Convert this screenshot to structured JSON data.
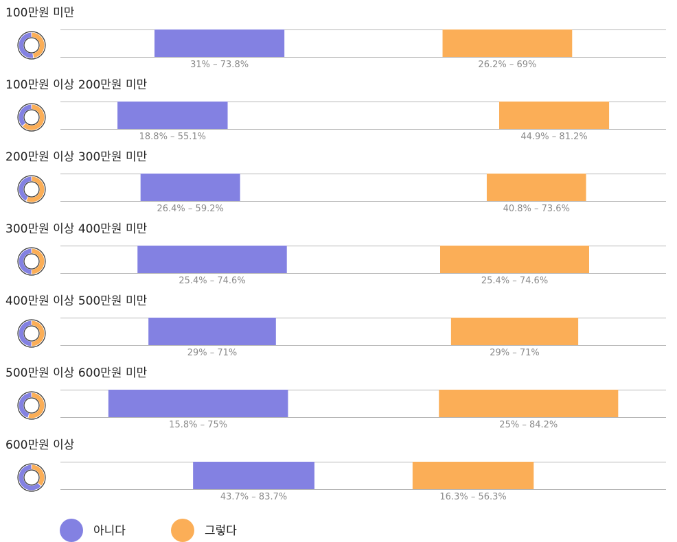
{
  "chart_data": {
    "type": "bar",
    "series": [
      {
        "name": "아니다",
        "color": "#8381e2"
      },
      {
        "name": "그렇다",
        "color": "#fbae57"
      }
    ],
    "rows": [
      {
        "category": "100만원 미만",
        "a": {
          "low": 31,
          "high": 73.8,
          "label": "31% – 73.8%"
        },
        "b": {
          "low": 26.2,
          "high": 69,
          "label": "26.2% – 69%"
        }
      },
      {
        "category": "100만원 이상 200만원 미만",
        "a": {
          "low": 18.8,
          "high": 55.1,
          "label": "18.8% – 55.1%"
        },
        "b": {
          "low": 44.9,
          "high": 81.2,
          "label": "44.9% – 81.2%"
        }
      },
      {
        "category": "200만원 이상 300만원 미만",
        "a": {
          "low": 26.4,
          "high": 59.2,
          "label": "26.4% – 59.2%"
        },
        "b": {
          "low": 40.8,
          "high": 73.6,
          "label": "40.8% – 73.6%"
        }
      },
      {
        "category": "300만원 이상 400만원 미만",
        "a": {
          "low": 25.4,
          "high": 74.6,
          "label": "25.4% – 74.6%"
        },
        "b": {
          "low": 25.4,
          "high": 74.6,
          "label": "25.4% – 74.6%"
        }
      },
      {
        "category": "400만원 이상 500만원 미만",
        "a": {
          "low": 29,
          "high": 71,
          "label": "29% – 71%"
        },
        "b": {
          "low": 29,
          "high": 71,
          "label": "29% – 71%"
        }
      },
      {
        "category": "500만원 이상 600만원 미만",
        "a": {
          "low": 15.8,
          "high": 75,
          "label": "15.8% – 75%"
        },
        "b": {
          "low": 25,
          "high": 84.2,
          "label": "25% – 84.2%"
        }
      },
      {
        "category": "600만원 이상",
        "a": {
          "low": 43.7,
          "high": 83.7,
          "label": "43.7% – 83.7%"
        },
        "b": {
          "low": 16.3,
          "high": 56.3,
          "label": "16.3% – 56.3%"
        }
      }
    ],
    "xlim": [
      0,
      100
    ],
    "legend_position": "bottom-left",
    "grid": false
  }
}
